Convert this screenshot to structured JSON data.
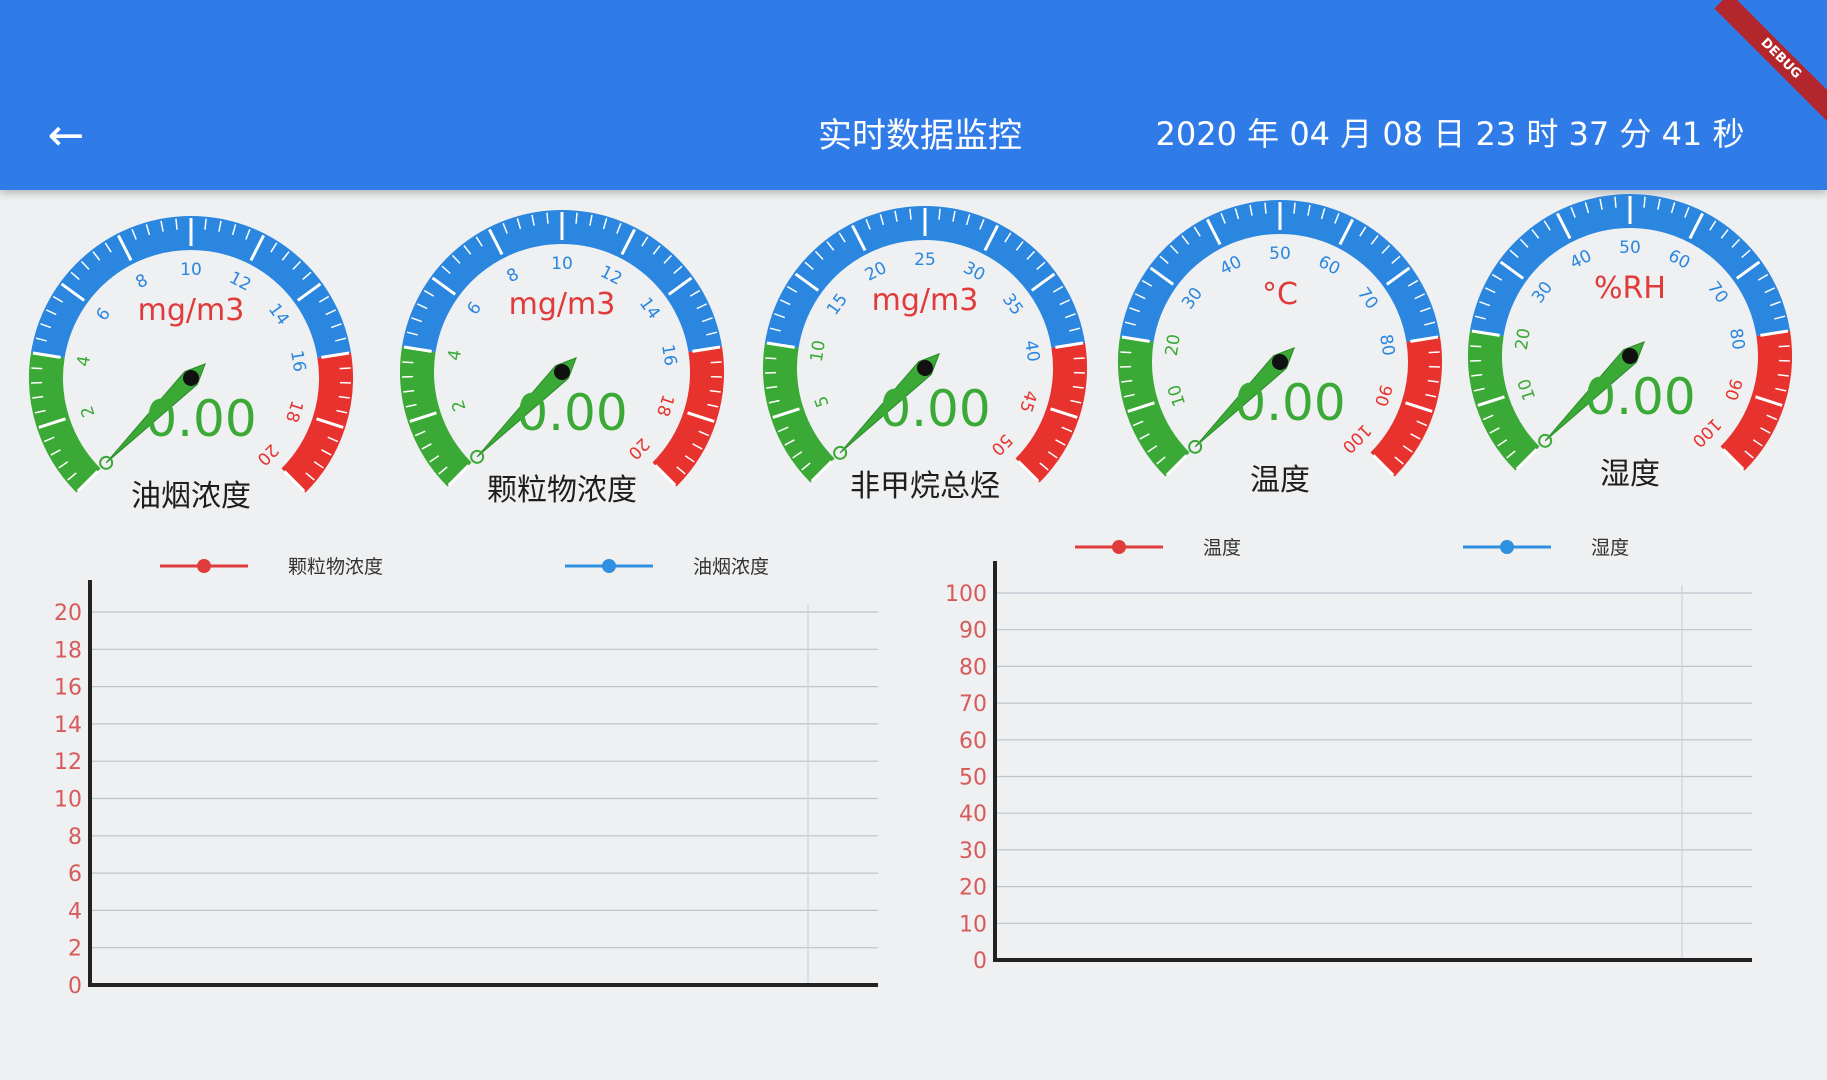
{
  "appbar": {
    "back_icon": "arrow-left-icon",
    "title": "实时数据监控",
    "datetime": "2020 年 04 月 08 日 23 时 37 分 41 秒",
    "debug_badge": "DEBUG",
    "color": "#2f7be8"
  },
  "gauges": [
    {
      "label": "油烟浓度",
      "unit": "mg/m3",
      "value_text": "0.00",
      "value": 0,
      "min": 0,
      "max": 20,
      "major_step": 2,
      "ticks": [
        "2",
        "4",
        "6",
        "8",
        "10",
        "12",
        "14",
        "16",
        "18",
        "20"
      ]
    },
    {
      "label": "颗粒物浓度",
      "unit": "mg/m3",
      "value_text": "0.00",
      "value": 0,
      "min": 0,
      "max": 20,
      "major_step": 2,
      "ticks": [
        "2",
        "4",
        "6",
        "8",
        "10",
        "12",
        "14",
        "16",
        "18",
        "20"
      ]
    },
    {
      "label": "非甲烷总烃",
      "unit": "mg/m3",
      "value_text": "0.00",
      "value": 0,
      "min": 0,
      "max": 50,
      "major_step": 5,
      "ticks": [
        "5",
        "10",
        "15",
        "20",
        "25",
        "30",
        "35",
        "40",
        "45",
        "50"
      ]
    },
    {
      "label": "温度",
      "unit": "°C",
      "value_text": "0.00",
      "value": 0,
      "min": 0,
      "max": 100,
      "major_step": 10,
      "ticks": [
        "10",
        "20",
        "30",
        "40",
        "50",
        "60",
        "70",
        "80",
        "90",
        "100"
      ]
    },
    {
      "label": "湿度",
      "unit": "%RH",
      "value_text": "0.00",
      "value": 0,
      "min": 0,
      "max": 100,
      "major_step": 10,
      "ticks": [
        "10",
        "20",
        "30",
        "40",
        "50",
        "60",
        "70",
        "80",
        "90",
        "100"
      ]
    }
  ],
  "gauge_colors": {
    "low": "#3aa935",
    "mid": "#2b86e0",
    "high": "#e8322e",
    "needle": "#3aa935",
    "label_red": "#e03a3a"
  },
  "chart_data": [
    {
      "type": "line",
      "series": [
        {
          "name": "颗粒物浓度",
          "color": "#e03c3c",
          "values": []
        },
        {
          "name": "油烟浓度",
          "color": "#2f8fe0",
          "values": []
        }
      ],
      "ylim": [
        0,
        20
      ],
      "yticks": [
        "0",
        "2",
        "4",
        "6",
        "8",
        "10",
        "12",
        "14",
        "16",
        "18",
        "20"
      ],
      "grid": true,
      "legend": "top"
    },
    {
      "type": "line",
      "series": [
        {
          "name": "温度",
          "color": "#e03c3c",
          "values": []
        },
        {
          "name": "湿度",
          "color": "#2f8fe0",
          "values": []
        }
      ],
      "ylim": [
        0,
        100
      ],
      "yticks": [
        "0",
        "10",
        "20",
        "30",
        "40",
        "50",
        "60",
        "70",
        "80",
        "90",
        "100"
      ],
      "grid": true,
      "legend": "top"
    }
  ]
}
